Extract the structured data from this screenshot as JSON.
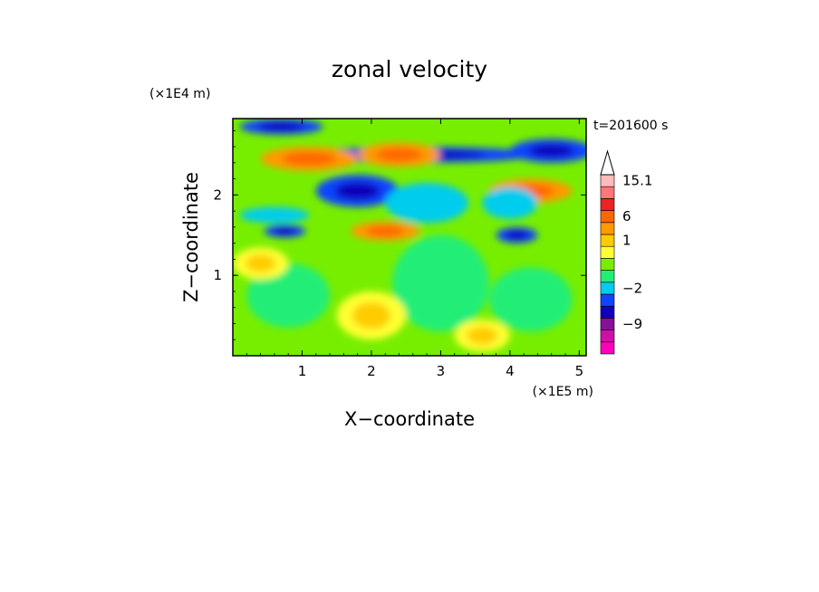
{
  "chart_data": {
    "type": "heatmap",
    "title": "zonal velocity",
    "xlabel": "X−coordinate",
    "ylabel": "Z−coordinate",
    "x_unit_label": "(×1E5 m)",
    "y_unit_label": "(×1E4 m)",
    "time_label": "t=201600 s",
    "xlim": [
      0,
      5.1
    ],
    "ylim": [
      0,
      2.95
    ],
    "x_ticks": [
      {
        "value": 1,
        "label": "1"
      },
      {
        "value": 2,
        "label": "2"
      },
      {
        "value": 3,
        "label": "3"
      },
      {
        "value": 4,
        "label": "4"
      },
      {
        "value": 5,
        "label": "5"
      }
    ],
    "y_ticks": [
      {
        "value": 1,
        "label": "1"
      },
      {
        "value": 2,
        "label": "2"
      }
    ],
    "colorbar": {
      "colors": [
        "#ff00bb",
        "#cc11aa",
        "#881199",
        "#1100bb",
        "#1144ff",
        "#00ccee",
        "#22ee77",
        "#77ee00",
        "#ffff33",
        "#ffcc00",
        "#ff9900",
        "#ff6600",
        "#ee2222",
        "#ff7777",
        "#ffbbbb"
      ],
      "extend_max_color": "#ffffff",
      "labels": [
        {
          "text": "−9",
          "band": 2
        },
        {
          "text": "−2",
          "band": 5
        },
        {
          "text": "1",
          "band": 9
        },
        {
          "text": "6",
          "band": 11
        },
        {
          "text": "15.1",
          "band": 14
        }
      ]
    },
    "features": [
      {
        "type": "blue",
        "x": 2.7,
        "y": 2.5,
        "rx": 1.7,
        "ry": 0.1
      },
      {
        "type": "blue",
        "x": 4.6,
        "y": 2.55,
        "rx": 0.6,
        "ry": 0.15
      },
      {
        "type": "blue",
        "x": 0.7,
        "y": 2.85,
        "rx": 0.6,
        "ry": 0.1
      },
      {
        "type": "blue",
        "x": 1.8,
        "y": 2.05,
        "rx": 0.6,
        "ry": 0.2
      },
      {
        "type": "blue",
        "x": 0.75,
        "y": 1.55,
        "rx": 0.3,
        "ry": 0.08
      },
      {
        "type": "blue",
        "x": 4.1,
        "y": 1.5,
        "rx": 0.3,
        "ry": 0.1
      },
      {
        "type": "blue",
        "x": 3.3,
        "y": 0.6,
        "rx": 0.1,
        "ry": 0.08
      },
      {
        "type": "orange",
        "x": 1.1,
        "y": 2.45,
        "rx": 0.7,
        "ry": 0.15
      },
      {
        "type": "orange",
        "x": 2.4,
        "y": 2.5,
        "rx": 0.6,
        "ry": 0.15
      },
      {
        "type": "orange",
        "x": 4.3,
        "y": 2.05,
        "rx": 0.6,
        "ry": 0.15
      },
      {
        "type": "orange",
        "x": 2.2,
        "y": 1.55,
        "rx": 0.5,
        "ry": 0.12
      },
      {
        "type": "cyan",
        "x": 2.8,
        "y": 1.9,
        "rx": 0.6,
        "ry": 0.25
      },
      {
        "type": "cyan",
        "x": 0.6,
        "y": 1.75,
        "rx": 0.5,
        "ry": 0.1
      },
      {
        "type": "cyan",
        "x": 4.0,
        "y": 1.9,
        "rx": 0.4,
        "ry": 0.2
      },
      {
        "type": "cyan",
        "x": 3.3,
        "y": 0.9,
        "rx": 0.3,
        "ry": 0.5
      },
      {
        "type": "green",
        "x": 3.0,
        "y": 0.9,
        "rx": 0.7,
        "ry": 0.6
      },
      {
        "type": "green",
        "x": 0.8,
        "y": 0.75,
        "rx": 0.6,
        "ry": 0.4
      },
      {
        "type": "green",
        "x": 4.3,
        "y": 0.7,
        "rx": 0.6,
        "ry": 0.4
      },
      {
        "type": "yellow",
        "x": 2.0,
        "y": 0.5,
        "rx": 0.5,
        "ry": 0.3
      },
      {
        "type": "yellow",
        "x": 3.6,
        "y": 0.25,
        "rx": 0.4,
        "ry": 0.2
      },
      {
        "type": "yellow",
        "x": 0.4,
        "y": 1.15,
        "rx": 0.4,
        "ry": 0.2
      }
    ]
  }
}
